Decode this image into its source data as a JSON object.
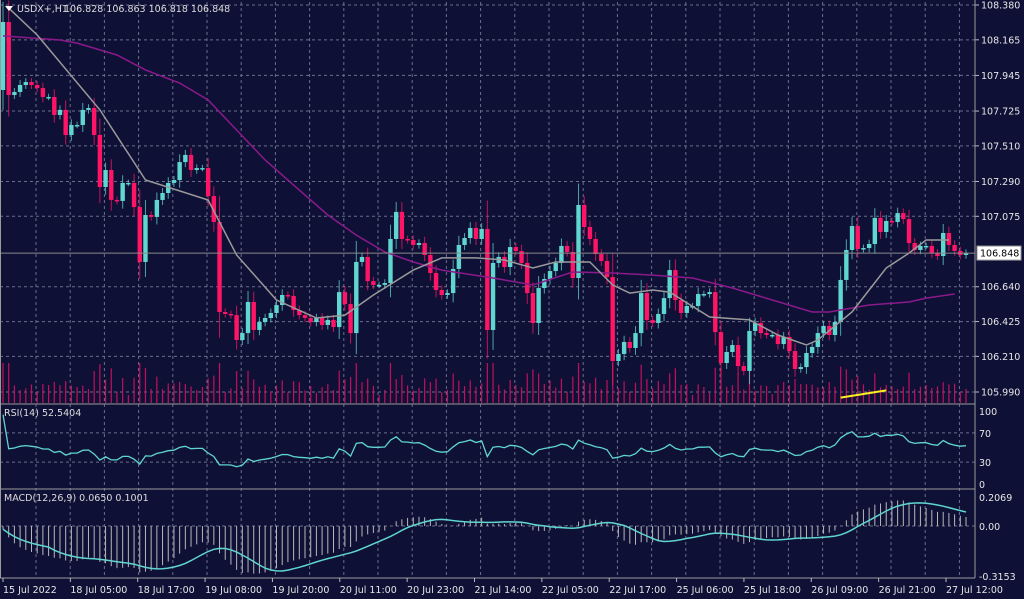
{
  "header": {
    "symbol_timeframe": "USDX+,H1",
    "ohlc": "106.828 106.863 106.818 106.848"
  },
  "colors": {
    "background": "#0f1036",
    "bull": "#5fd6cf",
    "bear": "#ff1466",
    "ma_fast": "#9a9a9a",
    "ma_slow": "#8a1a8a",
    "grid": "#6a6f8a",
    "volume": "#c2105c",
    "trendline": "#ffee22",
    "indicator_line": "#5fd6cf"
  },
  "chart_data": [
    {
      "type": "candlestick",
      "title": "USDX+,H1",
      "ylim": [
        105.99,
        108.38
      ],
      "y_ticks": [
        "108.380",
        "108.165",
        "107.945",
        "107.725",
        "107.510",
        "107.290",
        "107.075",
        "106.640",
        "106.425",
        "106.210",
        "105.990"
      ],
      "current_price": "106.848",
      "x_ticks": [
        "15 Jul 2022",
        "18 Jul 05:00",
        "18 Jul 17:00",
        "19 Jul 08:00",
        "19 Jul 20:00",
        "20 Jul 11:00",
        "20 Jul 23:00",
        "21 Jul 14:00",
        "22 Jul 05:00",
        "22 Jul 17:00",
        "25 Jul 06:00",
        "25 Jul 18:00",
        "26 Jul 09:00",
        "26 Jul 21:00",
        "27 Jul 12:00"
      ],
      "first_open": 107.855,
      "close": [
        108.275,
        107.824,
        107.843,
        107.886,
        107.904,
        107.886,
        107.867,
        107.812,
        107.812,
        107.701,
        107.732,
        107.577,
        107.639,
        107.639,
        107.732,
        107.744,
        107.577,
        107.256,
        107.361,
        107.176,
        107.17,
        107.281,
        107.281,
        107.132,
        106.793,
        107.083,
        107.071,
        107.176,
        107.219,
        107.281,
        107.299,
        107.41,
        107.454,
        107.361,
        107.373,
        107.373,
        107.2,
        107.04,
        106.484,
        106.472,
        106.465,
        106.311,
        106.354,
        106.546,
        106.373,
        106.422,
        106.447,
        106.478,
        106.527,
        106.589,
        106.583,
        106.496,
        106.465,
        106.447,
        106.422,
        106.447,
        106.404,
        106.435,
        106.391,
        106.607,
        106.533,
        106.354,
        106.793,
        106.824,
        106.675,
        106.651,
        106.651,
        106.663,
        106.935,
        107.102,
        106.935,
        106.929,
        106.898,
        106.91,
        106.836,
        106.725,
        106.62,
        106.589,
        106.601,
        106.75,
        106.898,
        106.941,
        107.003,
        106.935,
        106.997,
        106.373,
        106.787,
        106.824,
        106.762,
        106.885,
        106.861,
        106.787,
        106.601,
        106.416,
        106.632,
        106.688,
        106.737,
        106.787,
        106.892,
        106.855,
        106.694,
        107.145,
        107.009,
        106.935,
        106.842,
        106.799,
        106.7,
        106.181,
        106.225,
        106.299,
        106.262,
        106.354,
        106.601,
        106.435,
        106.416,
        106.472,
        106.57,
        106.743,
        106.558,
        106.478,
        106.521,
        106.521,
        106.595,
        106.595,
        106.607,
        106.36,
        106.169,
        106.237,
        106.28,
        106.15,
        106.12,
        106.367,
        106.416,
        106.354,
        106.342,
        106.342,
        106.286,
        106.33,
        106.243,
        106.132,
        106.144,
        106.231,
        106.268,
        106.354,
        106.398,
        106.342,
        106.422,
        106.682,
        106.867,
        107.015,
        106.873,
        106.879,
        106.904,
        107.065,
        106.978,
        107.046,
        107.04,
        107.095,
        107.058,
        106.91,
        106.867,
        106.892,
        106.892,
        106.848,
        106.83,
        106.972,
        106.898,
        106.861,
        106.836,
        106.848
      ],
      "ma_fast": [
        [
          1,
          108.361
        ],
        [
          6,
          108.195
        ],
        [
          17,
          107.732
        ],
        [
          25,
          107.299
        ],
        [
          36,
          107.176
        ],
        [
          41,
          106.836
        ],
        [
          48,
          106.558
        ],
        [
          55,
          106.447
        ],
        [
          60,
          106.465
        ],
        [
          65,
          106.589
        ],
        [
          72,
          106.743
        ],
        [
          77,
          106.818
        ],
        [
          83,
          106.818
        ],
        [
          88,
          106.805
        ],
        [
          93,
          106.756
        ],
        [
          97,
          106.793
        ],
        [
          103,
          106.793
        ],
        [
          107,
          106.651
        ],
        [
          110,
          106.601
        ],
        [
          114,
          106.62
        ],
        [
          117,
          106.607
        ],
        [
          124,
          106.453
        ],
        [
          131,
          106.435
        ],
        [
          136,
          106.342
        ],
        [
          141,
          106.28
        ],
        [
          143,
          106.311
        ],
        [
          149,
          106.484
        ],
        [
          152,
          106.62
        ],
        [
          155,
          106.756
        ],
        [
          159,
          106.848
        ],
        [
          162,
          106.929
        ],
        [
          166,
          106.929
        ]
      ],
      "ma_slow": [
        [
          0,
          108.189
        ],
        [
          10,
          108.164
        ],
        [
          13,
          108.145
        ],
        [
          20,
          108.071
        ],
        [
          25,
          107.979
        ],
        [
          31,
          107.898
        ],
        [
          36,
          107.793
        ],
        [
          41,
          107.608
        ],
        [
          46,
          107.423
        ],
        [
          52,
          107.237
        ],
        [
          57,
          107.083
        ],
        [
          62,
          106.959
        ],
        [
          67,
          106.855
        ],
        [
          72,
          106.793
        ],
        [
          77,
          106.743
        ],
        [
          86,
          106.694
        ],
        [
          93,
          106.651
        ],
        [
          100,
          106.731
        ],
        [
          107,
          106.725
        ],
        [
          114,
          106.712
        ],
        [
          121,
          106.694
        ],
        [
          128,
          106.632
        ],
        [
          135,
          106.558
        ],
        [
          142,
          106.484
        ],
        [
          145,
          106.484
        ],
        [
          152,
          106.527
        ],
        [
          159,
          106.546
        ],
        [
          162,
          106.57
        ],
        [
          167,
          106.595
        ]
      ],
      "trendline": [
        [
          147,
          105.955
        ],
        [
          155,
          106.0
        ]
      ]
    },
    {
      "type": "line",
      "title": "RSI(14) 52.5404",
      "ylim": [
        0,
        100
      ],
      "y_ticks": [
        "100",
        "70",
        "30",
        "0"
      ],
      "levels": [
        70,
        30
      ]
    },
    {
      "type": "bar",
      "title": "MACD(12,26,9) 0.0650 0.1001",
      "ylim": [
        -0.3153,
        0.2069
      ],
      "y_ticks": [
        "0.2069",
        "0.00",
        "-0.3153"
      ]
    }
  ]
}
